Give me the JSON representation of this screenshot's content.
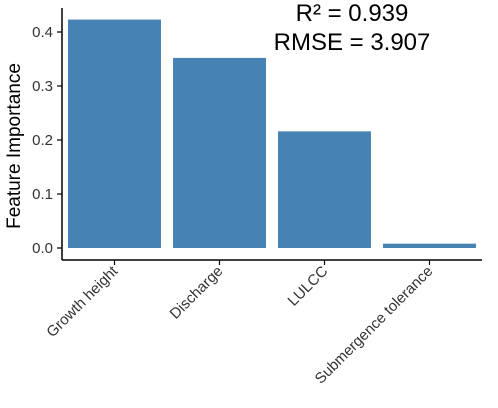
{
  "chart_data": {
    "type": "bar",
    "categories": [
      "Growth height",
      "Discharge",
      "LULCC",
      "Submergence tolerance"
    ],
    "values": [
      0.423,
      0.352,
      0.216,
      0.008
    ],
    "ylabel": "Feature Importance",
    "xlabel": "",
    "ylim": [
      0,
      0.44
    ],
    "yticks": [
      "0.0",
      "0.1",
      "0.2",
      "0.3",
      "0.4"
    ],
    "annotations": [
      "R² = 0.939",
      "RMSE = 3.907"
    ],
    "grid": false,
    "bar_color": "#4682B4"
  }
}
